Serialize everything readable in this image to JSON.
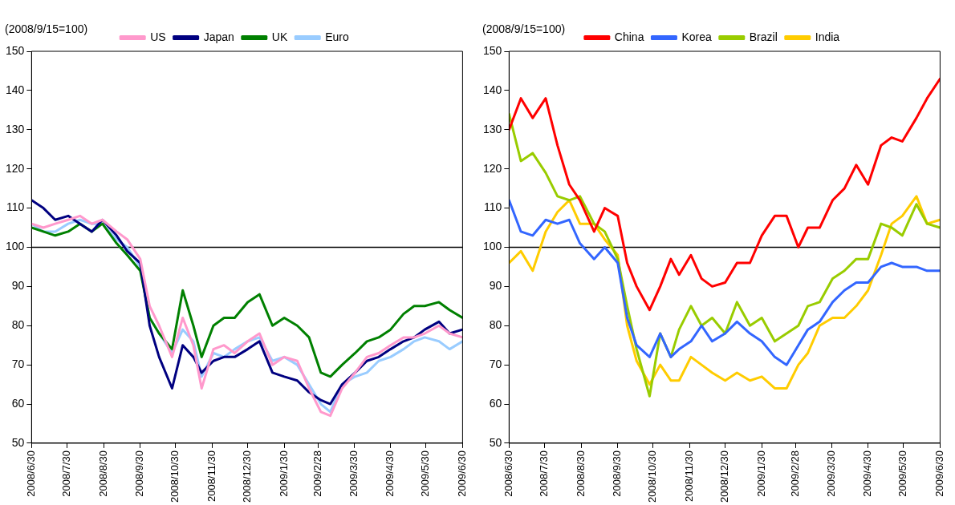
{
  "chart_data": [
    {
      "type": "line",
      "ylabel": "(2008/9/15=100)",
      "x": [
        "2008-06-30",
        "2008-07-10",
        "2008-07-20",
        "2008-07-31",
        "2008-08-10",
        "2008-08-20",
        "2008-08-29",
        "2008-09-10",
        "2008-09-19",
        "2008-09-30",
        "2008-10-08",
        "2008-10-16",
        "2008-10-27",
        "2008-11-05",
        "2008-11-14",
        "2008-11-21",
        "2008-12-01",
        "2008-12-10",
        "2008-12-19",
        "2008-12-30",
        "2009-01-09",
        "2009-01-20",
        "2009-01-30",
        "2009-02-10",
        "2009-02-20",
        "2009-03-02",
        "2009-03-10",
        "2009-03-20",
        "2009-03-31",
        "2009-04-10",
        "2009-04-20",
        "2009-04-30",
        "2009-05-11",
        "2009-05-20",
        "2009-05-29",
        "2009-06-10",
        "2009-06-19",
        "2009-06-30"
      ],
      "series": [
        {
          "name": "US",
          "color": "#ff99cc",
          "values": [
            106,
            105,
            106,
            107,
            108,
            106,
            107,
            104,
            102,
            97,
            85,
            80,
            72,
            82,
            75,
            64,
            74,
            75,
            73,
            76,
            78,
            70,
            72,
            71,
            64,
            58,
            57,
            64,
            68,
            72,
            73,
            75,
            77,
            77,
            78,
            80,
            78,
            77
          ]
        },
        {
          "name": "Japan",
          "color": "#000080",
          "values": [
            112,
            110,
            107,
            108,
            106,
            104,
            107,
            103,
            99,
            96,
            80,
            72,
            64,
            75,
            72,
            68,
            71,
            72,
            72,
            74,
            76,
            68,
            67,
            66,
            63,
            61,
            60,
            65,
            68,
            71,
            72,
            74,
            76,
            77,
            79,
            81,
            78,
            79
          ]
        },
        {
          "name": "UK",
          "color": "#008000",
          "values": [
            105,
            104,
            103,
            104,
            106,
            104,
            106,
            101,
            98,
            94,
            82,
            78,
            74,
            89,
            80,
            72,
            80,
            82,
            82,
            86,
            88,
            80,
            82,
            80,
            77,
            68,
            67,
            70,
            73,
            76,
            77,
            79,
            83,
            85,
            85,
            86,
            84,
            82
          ]
        },
        {
          "name": "Euro",
          "color": "#99ccff",
          "values": [
            106,
            104,
            104,
            106,
            107,
            106,
            106,
            102,
            100,
            95,
            82,
            78,
            73,
            79,
            76,
            67,
            73,
            72,
            74,
            76,
            77,
            71,
            72,
            70,
            65,
            60,
            58,
            65,
            67,
            68,
            71,
            72,
            74,
            76,
            77,
            76,
            74,
            76
          ]
        }
      ],
      "xlim": [
        "2008-06-30",
        "2009-06-30"
      ],
      "xticks": [
        {
          "value": "2008-06-30",
          "label": "2008/6/30"
        },
        {
          "value": "2008-07-30",
          "label": "2008/7/30"
        },
        {
          "value": "2008-08-30",
          "label": "2008/8/30"
        },
        {
          "value": "2008-09-30",
          "label": "2008/9/30"
        },
        {
          "value": "2008-10-30",
          "label": "2008/10/30"
        },
        {
          "value": "2008-11-30",
          "label": "2008/11/30"
        },
        {
          "value": "2008-12-30",
          "label": "2008/12/30"
        },
        {
          "value": "2009-01-30",
          "label": "2009/1/30"
        },
        {
          "value": "2009-02-28",
          "label": "2009/2/28"
        },
        {
          "value": "2009-03-30",
          "label": "2009/3/30"
        },
        {
          "value": "2009-04-30",
          "label": "2009/4/30"
        },
        {
          "value": "2009-05-30",
          "label": "2009/5/30"
        },
        {
          "value": "2009-06-30",
          "label": "2009/6/30"
        }
      ],
      "ylim": [
        50,
        150
      ],
      "yticks": [
        50,
        60,
        70,
        80,
        90,
        100,
        110,
        120,
        130,
        140,
        150
      ],
      "ref_lines": [
        {
          "axis": "y",
          "value": 100,
          "color": "#000000"
        }
      ],
      "grid": false,
      "legend": "top",
      "marker": "none",
      "line_style": "solid"
    },
    {
      "type": "line",
      "ylabel": "(2008/9/15=100)",
      "x": [
        "2008-06-30",
        "2008-07-10",
        "2008-07-20",
        "2008-07-31",
        "2008-08-10",
        "2008-08-20",
        "2008-08-29",
        "2008-09-10",
        "2008-09-19",
        "2008-09-30",
        "2008-10-08",
        "2008-10-16",
        "2008-10-27",
        "2008-11-05",
        "2008-11-14",
        "2008-11-21",
        "2008-12-01",
        "2008-12-10",
        "2008-12-19",
        "2008-12-30",
        "2009-01-09",
        "2009-01-20",
        "2009-01-30",
        "2009-02-10",
        "2009-02-20",
        "2009-03-02",
        "2009-03-10",
        "2009-03-20",
        "2009-03-31",
        "2009-04-10",
        "2009-04-20",
        "2009-04-30",
        "2009-05-11",
        "2009-05-20",
        "2009-05-29",
        "2009-06-10",
        "2009-06-19",
        "2009-06-30"
      ],
      "series": [
        {
          "name": "China",
          "color": "#ff0000",
          "values": [
            130,
            138,
            133,
            138,
            126,
            116,
            112,
            104,
            110,
            108,
            96,
            90,
            84,
            90,
            97,
            93,
            98,
            92,
            90,
            91,
            96,
            96,
            103,
            108,
            108,
            100,
            105,
            105,
            112,
            115,
            121,
            116,
            126,
            128,
            127,
            133,
            138,
            143
          ]
        },
        {
          "name": "Korea",
          "color": "#3366ff",
          "values": [
            112,
            104,
            103,
            107,
            106,
            107,
            101,
            97,
            100,
            96,
            82,
            75,
            72,
            78,
            72,
            74,
            76,
            80,
            76,
            78,
            81,
            78,
            76,
            72,
            70,
            75,
            79,
            81,
            86,
            89,
            91,
            91,
            95,
            96,
            95,
            95,
            94,
            94
          ]
        },
        {
          "name": "Brazil",
          "color": "#99cc00",
          "values": [
            134,
            122,
            124,
            119,
            113,
            112,
            113,
            106,
            104,
            97,
            85,
            74,
            62,
            78,
            72,
            79,
            85,
            80,
            82,
            78,
            86,
            80,
            82,
            76,
            78,
            80,
            85,
            86,
            92,
            94,
            97,
            97,
            106,
            105,
            103,
            111,
            106,
            105
          ]
        },
        {
          "name": "India",
          "color": "#ffcc00",
          "values": [
            96,
            99,
            94,
            104,
            109,
            112,
            106,
            106,
            102,
            98,
            80,
            71,
            65,
            70,
            66,
            66,
            72,
            70,
            68,
            66,
            68,
            66,
            67,
            64,
            64,
            70,
            73,
            80,
            82,
            82,
            85,
            89,
            98,
            106,
            108,
            113,
            106,
            107
          ]
        }
      ],
      "xlim": [
        "2008-06-30",
        "2009-06-30"
      ],
      "xticks": [
        {
          "value": "2008-06-30",
          "label": "2008/6/30"
        },
        {
          "value": "2008-07-30",
          "label": "2008/7/30"
        },
        {
          "value": "2008-08-30",
          "label": "2008/8/30"
        },
        {
          "value": "2008-09-30",
          "label": "2008/9/30"
        },
        {
          "value": "2008-10-30",
          "label": "2008/10/30"
        },
        {
          "value": "2008-11-30",
          "label": "2008/11/30"
        },
        {
          "value": "2008-12-30",
          "label": "2008/12/30"
        },
        {
          "value": "2009-01-30",
          "label": "2009/1/30"
        },
        {
          "value": "2009-02-28",
          "label": "2009/2/28"
        },
        {
          "value": "2009-03-30",
          "label": "2009/3/30"
        },
        {
          "value": "2009-04-30",
          "label": "2009/4/30"
        },
        {
          "value": "2009-05-30",
          "label": "2009/5/30"
        },
        {
          "value": "2009-06-30",
          "label": "2009/6/30"
        }
      ],
      "ylim": [
        50,
        150
      ],
      "yticks": [
        50,
        60,
        70,
        80,
        90,
        100,
        110,
        120,
        130,
        140,
        150
      ],
      "ref_lines": [
        {
          "axis": "y",
          "value": 100,
          "color": "#000000"
        }
      ],
      "grid": false,
      "legend": "top",
      "marker": "none",
      "line_style": "solid"
    }
  ]
}
